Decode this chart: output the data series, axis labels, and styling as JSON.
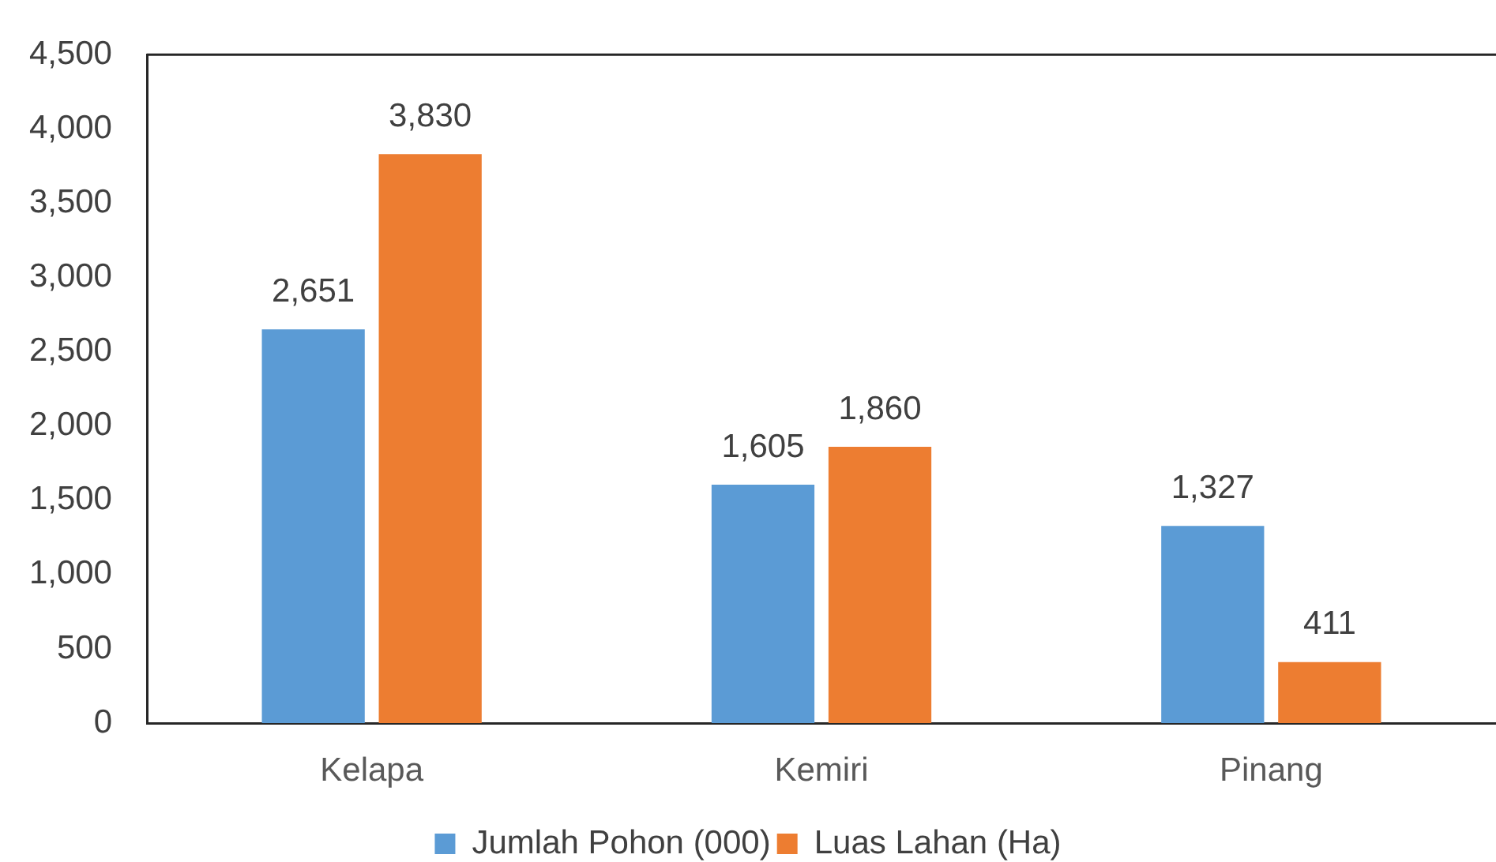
{
  "chart_data": {
    "type": "bar",
    "categories": [
      "Kelapa",
      "Kemiri",
      "Pinang"
    ],
    "series": [
      {
        "name": "Jumlah Pohon (000)",
        "color": "#5b9bd5",
        "values": [
          2651,
          1605,
          1327
        ],
        "value_labels": [
          "2,651",
          "1,605",
          "1,327"
        ]
      },
      {
        "name": "Luas Lahan (Ha)",
        "color": "#ed7d31",
        "values": [
          3830,
          1860,
          411
        ],
        "value_labels": [
          "3,830",
          "1,860",
          "411"
        ]
      }
    ],
    "ylim": [
      0,
      4500
    ],
    "yticks": [
      0,
      500,
      {
        "value": 1000,
        "label": "1,000"
      },
      {
        "value": 1500,
        "label": "1,500"
      },
      {
        "value": 2000,
        "label": "2,000"
      },
      {
        "value": 2500,
        "label": "2,500"
      },
      {
        "value": 3000,
        "label": "3,000"
      },
      {
        "value": 3500,
        "label": "3,500"
      },
      {
        "value": 4000,
        "label": "4,000"
      },
      {
        "value": 4500,
        "label": "4,500"
      }
    ],
    "grid": false,
    "legend": "bottom"
  }
}
